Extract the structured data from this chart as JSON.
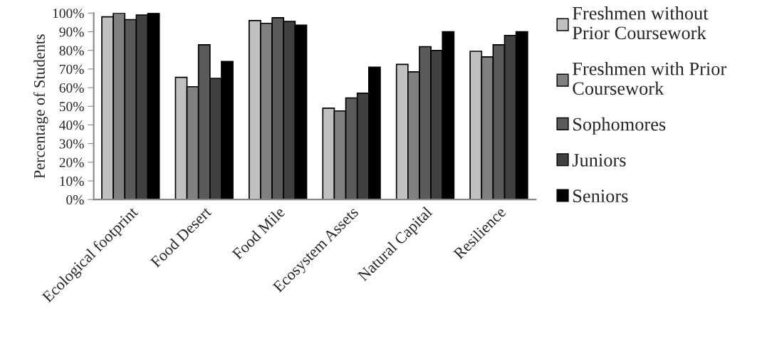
{
  "chart_data": {
    "type": "bar",
    "ylabel": "Percentage of Students",
    "categories": [
      "Ecological footprint",
      "Food Desert",
      "Food Mile",
      "Ecosystem Assets",
      "Natural Capital",
      "Resilience"
    ],
    "series": [
      {
        "name": "Freshmen without Prior Coursework",
        "color": "#c0c0c0",
        "values": [
          98,
          65.5,
          96,
          49,
          72.5,
          79.5
        ]
      },
      {
        "name": "Freshmen with Prior Coursework",
        "color": "#808080",
        "values": [
          100,
          60.5,
          94.5,
          47.5,
          68.5,
          76.5
        ]
      },
      {
        "name": "Sophomores",
        "color": "#5a5a5a",
        "values": [
          96.5,
          83,
          97.5,
          54.5,
          82,
          83
        ]
      },
      {
        "name": "Juniors",
        "color": "#404040",
        "values": [
          99,
          65,
          95.5,
          57,
          80,
          88
        ]
      },
      {
        "name": "Seniors",
        "color": "#000000",
        "values": [
          100,
          74,
          93.5,
          71,
          90,
          90
        ]
      }
    ],
    "ylim": [
      0,
      100
    ],
    "yticks": [
      {
        "value": 0,
        "label": "0%"
      },
      {
        "value": 10,
        "label": "10%"
      },
      {
        "value": 20,
        "label": "20%"
      },
      {
        "value": 30,
        "label": "30%"
      },
      {
        "value": 40,
        "label": "40%"
      },
      {
        "value": 50,
        "label": "50%"
      },
      {
        "value": 60,
        "label": "60%"
      },
      {
        "value": 70,
        "label": "70%"
      },
      {
        "value": 80,
        "label": "80%"
      },
      {
        "value": 90,
        "label": "90%"
      },
      {
        "value": 100,
        "label": "100%"
      }
    ],
    "grid": false,
    "legend": "right"
  }
}
